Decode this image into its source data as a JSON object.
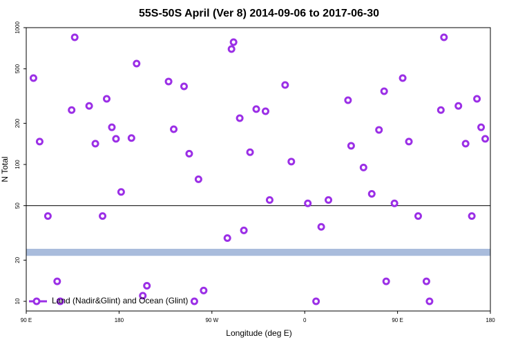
{
  "chart_data": {
    "type": "scatter",
    "title": "55S-50S April (Ver 8)   2014-09-06 to 2017-06-30",
    "x_label": "Longitude (deg E)",
    "y_label": "N Total",
    "xlim": [
      90,
      540
    ],
    "xticks": [
      {
        "value": 90,
        "label": "90 E"
      },
      {
        "value": 180,
        "label": "180"
      },
      {
        "value": 270,
        "label": "90 W"
      },
      {
        "value": 360,
        "label": "0"
      },
      {
        "value": 450,
        "label": "90 E"
      },
      {
        "value": 540,
        "label": "180"
      }
    ],
    "ylim": [
      8.5,
      1000
    ],
    "yticks": [
      10,
      20,
      50,
      100,
      200,
      500,
      1000
    ],
    "log_y": true,
    "hline": 50,
    "band": [
      21.5,
      24.2
    ],
    "band_color": "#a9bcdc",
    "legend": "lower left",
    "series": [
      {
        "name": "Land (Nadir&Glint) and Ocean (Glint)",
        "color": "#9b2fe6",
        "x": [
          97,
          103,
          111,
          120,
          123,
          134,
          137,
          151,
          157,
          164,
          168,
          173,
          177,
          182,
          192,
          197,
          203,
          207,
          228,
          233,
          243,
          248,
          253,
          257,
          262,
          285,
          289,
          291,
          297,
          301,
          307,
          313,
          322,
          326,
          341,
          347,
          363,
          371,
          376,
          383,
          402,
          405,
          417,
          425,
          432,
          437,
          439,
          447,
          455,
          461,
          470,
          478,
          481,
          492,
          495,
          509,
          516,
          522,
          527,
          531,
          535
        ],
        "values": [
          428,
          147,
          42,
          14,
          10,
          250,
          850,
          268,
          142,
          42,
          302,
          187,
          154,
          63,
          156,
          546,
          11,
          13,
          404,
          181,
          372,
          120,
          10,
          78,
          12,
          29,
          697,
          783,
          218,
          33,
          123,
          254,
          245,
          55,
          381,
          105,
          52,
          10,
          35,
          55,
          295,
          137,
          95,
          61,
          179,
          343,
          14,
          52,
          428,
          147,
          42,
          14,
          10,
          250,
          850,
          268,
          142,
          42,
          302,
          187,
          154
        ]
      }
    ]
  }
}
